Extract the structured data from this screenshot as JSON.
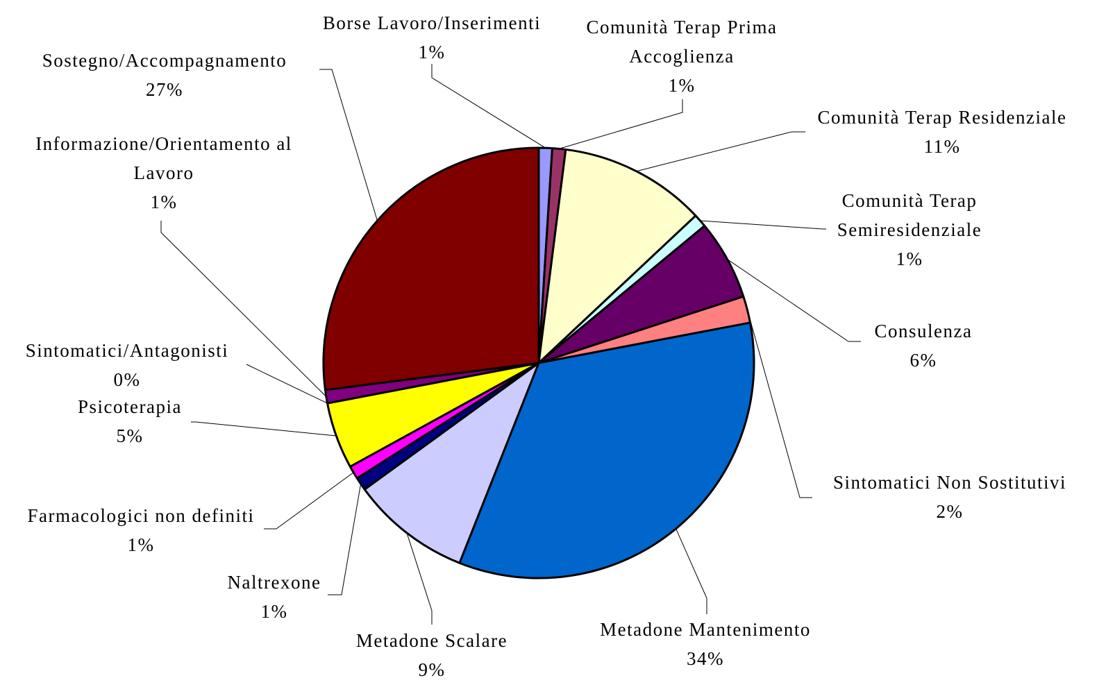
{
  "chart_data": {
    "type": "pie",
    "categories": [
      "Borse Lavoro/Inserimenti",
      "Comunità Terap Prima Accoglienza",
      "Comunità Terap Residenziale",
      "Comunità Terap Semiresidenziale",
      "Consulenza",
      "Sintomatici Non Sostitutivi",
      "Metadone Mantenimento",
      "Metadone Scalare",
      "Naltrexone",
      "Farmacologici non definiti",
      "Psicoterapia",
      "Sintomatici/Antagonisti",
      "Informazione/Orientamento al Lavoro",
      "Sostegno/Accompagnamento"
    ],
    "values": [
      1,
      1,
      11,
      1,
      6,
      2,
      34,
      9,
      1,
      1,
      5,
      0,
      1,
      27
    ],
    "value_labels": [
      "1%",
      "1%",
      "11%",
      "1%",
      "6%",
      "2%",
      "34%",
      "9%",
      "1%",
      "1%",
      "5%",
      "0%",
      "1%",
      "27%"
    ],
    "colors": [
      "#9999ff",
      "#993366",
      "#ffffcc",
      "#ccffff",
      "#660066",
      "#ff8080",
      "#0066cc",
      "#ccccff",
      "#000080",
      "#ff00ff",
      "#ffff00",
      "#00ffff",
      "#800080",
      "#800000"
    ]
  }
}
